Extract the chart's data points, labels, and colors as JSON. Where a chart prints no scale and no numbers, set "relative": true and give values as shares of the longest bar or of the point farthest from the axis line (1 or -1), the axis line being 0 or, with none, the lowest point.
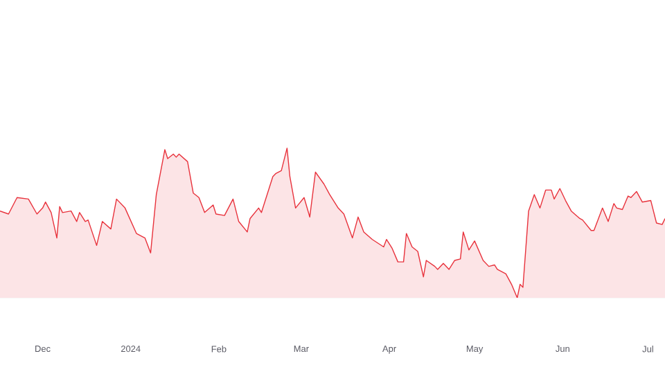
{
  "chart_data": {
    "type": "area",
    "relative": true,
    "color": "#e8323c",
    "xlim": [
      "2023-11-16",
      "2024-07-07"
    ],
    "xticks": [
      {
        "value": "2023-12-01",
        "label": "Dec"
      },
      {
        "value": "2024-01-01",
        "label": "2024"
      },
      {
        "value": "2024-02-01",
        "label": "Feb"
      },
      {
        "value": "2024-03-01",
        "label": "Mar"
      },
      {
        "value": "2024-04-01",
        "label": "Apr"
      },
      {
        "value": "2024-05-01",
        "label": "May"
      },
      {
        "value": "2024-06-01",
        "label": "Jun"
      },
      {
        "value": "2024-07-01",
        "label": "Jul"
      }
    ],
    "x": [
      "2023-11-16",
      "2023-11-19",
      "2023-11-22",
      "2023-11-26",
      "2023-11-29",
      "2023-12-01",
      "2023-12-02",
      "2023-12-04",
      "2023-12-06",
      "2023-12-07",
      "2023-12-08",
      "2023-12-11",
      "2023-12-13",
      "2023-12-14",
      "2023-12-16",
      "2023-12-17",
      "2023-12-20",
      "2023-12-22",
      "2023-12-25",
      "2023-12-27",
      "2023-12-30",
      "2024-01-03",
      "2024-01-06",
      "2024-01-08",
      "2024-01-10",
      "2024-01-13",
      "2024-01-14",
      "2024-01-16",
      "2024-01-17",
      "2024-01-18",
      "2024-01-21",
      "2024-01-23",
      "2024-01-25",
      "2024-01-27",
      "2024-01-30",
      "2024-01-31",
      "2024-02-03",
      "2024-02-06",
      "2024-02-08",
      "2024-02-11",
      "2024-02-12",
      "2024-02-15",
      "2024-02-16",
      "2024-02-20",
      "2024-02-21",
      "2024-02-23",
      "2024-02-25",
      "2024-02-26",
      "2024-02-28",
      "2024-03-02",
      "2024-03-04",
      "2024-03-06",
      "2024-03-09",
      "2024-03-11",
      "2024-03-14",
      "2024-03-16",
      "2024-03-19",
      "2024-03-21",
      "2024-03-23",
      "2024-03-26",
      "2024-03-30",
      "2024-03-31",
      "2024-04-02",
      "2024-04-04",
      "2024-04-06",
      "2024-04-07",
      "2024-04-09",
      "2024-04-11",
      "2024-04-13",
      "2024-04-14",
      "2024-04-17",
      "2024-04-18",
      "2024-04-20",
      "2024-04-22",
      "2024-04-24",
      "2024-04-26",
      "2024-04-27",
      "2024-04-29",
      "2024-05-01",
      "2024-05-04",
      "2024-05-06",
      "2024-05-08",
      "2024-05-09",
      "2024-05-12",
      "2024-05-14",
      "2024-05-16",
      "2024-05-17",
      "2024-05-18",
      "2024-05-20",
      "2024-05-22",
      "2024-05-24",
      "2024-05-26",
      "2024-05-28",
      "2024-05-29",
      "2024-05-31",
      "2024-06-02",
      "2024-06-04",
      "2024-06-07",
      "2024-06-08",
      "2024-06-11",
      "2024-06-12",
      "2024-06-15",
      "2024-06-17",
      "2024-06-19",
      "2024-06-20",
      "2024-06-22",
      "2024-06-24",
      "2024-06-25",
      "2024-06-27",
      "2024-06-29",
      "2024-07-02",
      "2024-07-04",
      "2024-07-06",
      "2024-07-07"
    ],
    "values": [
      0.58,
      0.56,
      0.67,
      0.66,
      0.56,
      0.6,
      0.64,
      0.57,
      0.4,
      0.61,
      0.57,
      0.58,
      0.51,
      0.57,
      0.51,
      0.52,
      0.35,
      0.51,
      0.46,
      0.66,
      0.6,
      0.43,
      0.4,
      0.3,
      0.69,
      0.99,
      0.93,
      0.96,
      0.94,
      0.96,
      0.91,
      0.7,
      0.67,
      0.57,
      0.62,
      0.56,
      0.55,
      0.66,
      0.51,
      0.44,
      0.53,
      0.6,
      0.57,
      0.81,
      0.83,
      0.85,
      1.0,
      0.81,
      0.6,
      0.67,
      0.54,
      0.84,
      0.76,
      0.69,
      0.6,
      0.56,
      0.4,
      0.54,
      0.44,
      0.39,
      0.34,
      0.39,
      0.33,
      0.24,
      0.24,
      0.43,
      0.34,
      0.31,
      0.14,
      0.25,
      0.21,
      0.19,
      0.23,
      0.19,
      0.25,
      0.26,
      0.44,
      0.32,
      0.38,
      0.25,
      0.21,
      0.22,
      0.19,
      0.16,
      0.09,
      0.0,
      0.09,
      0.07,
      0.58,
      0.69,
      0.6,
      0.72,
      0.72,
      0.66,
      0.73,
      0.65,
      0.58,
      0.53,
      0.52,
      0.45,
      0.45,
      0.6,
      0.51,
      0.63,
      0.6,
      0.59,
      0.68,
      0.67,
      0.71,
      0.64,
      0.65,
      0.5,
      0.49,
      0.53
    ]
  }
}
